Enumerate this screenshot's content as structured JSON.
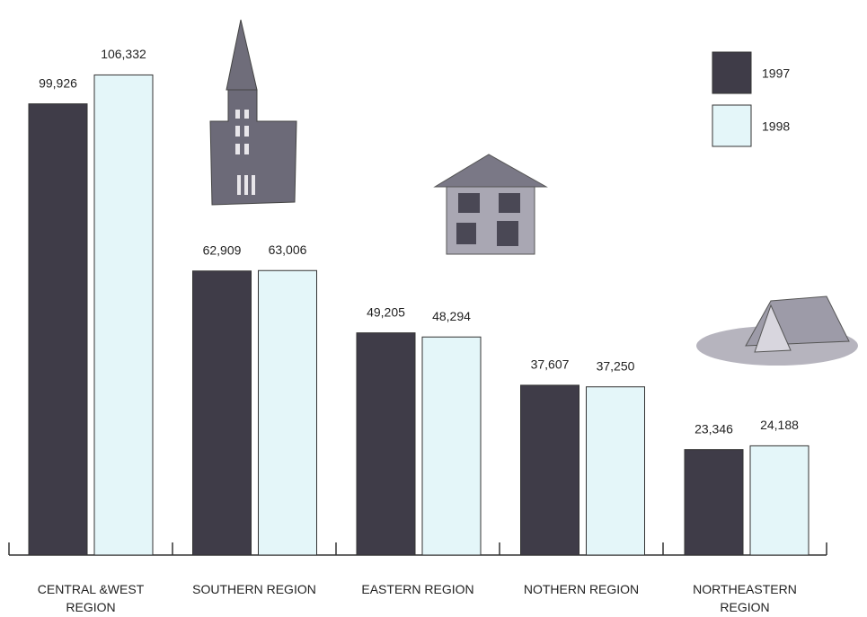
{
  "chart_data": {
    "type": "bar",
    "categories": [
      "CENTRAL &WEST REGION",
      "SOUTHERN REGION",
      "EASTERN REGION",
      "NOTHERN REGION",
      "NORTHEASTERN REGION"
    ],
    "series": [
      {
        "name": "1997",
        "color": "#3f3c48",
        "values": [
          99926,
          62909,
          49205,
          37607,
          23346
        ],
        "value_labels": [
          "99,926",
          "62,909",
          "49,205",
          "37,607",
          "23,346"
        ]
      },
      {
        "name": "1998",
        "color": "#e4f6f9",
        "values": [
          106332,
          63006,
          48294,
          37250,
          24188
        ],
        "value_labels": [
          "106,332",
          "63,006",
          "48,294",
          "37,250",
          "24,188"
        ]
      }
    ],
    "ylim": [
      0,
      110000
    ]
  }
}
